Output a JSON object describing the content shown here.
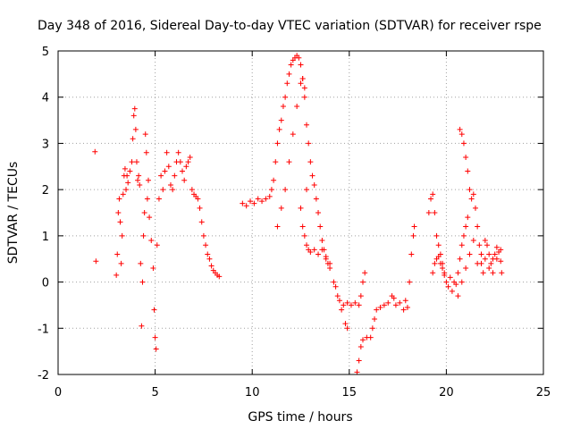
{
  "chart_data": {
    "type": "scatter",
    "title": "Day 348 of 2016, Sidereal Day-to-day VTEC variation (SDTVAR) for receiver rspe",
    "xlabel": "GPS time / hours",
    "ylabel": "SDTVAR / TECUs",
    "xlim": [
      0,
      25
    ],
    "ylim": [
      -2,
      5
    ],
    "xticks": [
      "0",
      "5",
      "10",
      "15",
      "20",
      "25"
    ],
    "yticks": [
      "-2",
      "-1",
      "0",
      "1",
      "2",
      "3",
      "4",
      "5"
    ],
    "grid": true,
    "marker": "plus",
    "series_color": "#ff0000",
    "series": [
      {
        "name": "SDTVAR",
        "points": [
          [
            1.9,
            2.82
          ],
          [
            1.95,
            0.45
          ],
          [
            3.0,
            0.15
          ],
          [
            3.05,
            0.6
          ],
          [
            3.1,
            1.5
          ],
          [
            3.15,
            1.8
          ],
          [
            3.2,
            1.3
          ],
          [
            3.25,
            0.4
          ],
          [
            3.3,
            1.0
          ],
          [
            3.35,
            1.9
          ],
          [
            3.4,
            2.3
          ],
          [
            3.45,
            2.45
          ],
          [
            3.5,
            2.0
          ],
          [
            3.55,
            2.3
          ],
          [
            3.6,
            2.15
          ],
          [
            3.7,
            2.4
          ],
          [
            3.8,
            2.6
          ],
          [
            3.85,
            3.1
          ],
          [
            3.9,
            3.6
          ],
          [
            3.95,
            3.75
          ],
          [
            4.0,
            3.3
          ],
          [
            4.05,
            2.6
          ],
          [
            4.1,
            2.2
          ],
          [
            4.15,
            2.3
          ],
          [
            4.2,
            2.1
          ],
          [
            4.25,
            0.4
          ],
          [
            4.3,
            -0.95
          ],
          [
            4.35,
            0.0
          ],
          [
            4.4,
            1.0
          ],
          [
            4.45,
            1.5
          ],
          [
            4.5,
            3.2
          ],
          [
            4.55,
            2.8
          ],
          [
            4.6,
            1.8
          ],
          [
            4.65,
            2.2
          ],
          [
            4.7,
            1.4
          ],
          [
            4.8,
            0.9
          ],
          [
            4.9,
            0.3
          ],
          [
            4.95,
            -0.6
          ],
          [
            5.0,
            -1.2
          ],
          [
            5.05,
            -1.45
          ],
          [
            5.1,
            0.8
          ],
          [
            5.2,
            1.8
          ],
          [
            5.3,
            2.3
          ],
          [
            5.4,
            2.0
          ],
          [
            5.5,
            2.4
          ],
          [
            5.6,
            2.8
          ],
          [
            5.7,
            2.5
          ],
          [
            5.8,
            2.1
          ],
          [
            5.9,
            2.0
          ],
          [
            6.0,
            2.3
          ],
          [
            6.1,
            2.6
          ],
          [
            6.2,
            2.8
          ],
          [
            6.3,
            2.6
          ],
          [
            6.4,
            2.4
          ],
          [
            6.5,
            2.2
          ],
          [
            6.6,
            2.5
          ],
          [
            6.7,
            2.6
          ],
          [
            6.8,
            2.7
          ],
          [
            6.9,
            2.0
          ],
          [
            7.0,
            1.9
          ],
          [
            7.1,
            1.85
          ],
          [
            7.2,
            1.8
          ],
          [
            7.3,
            1.6
          ],
          [
            7.4,
            1.3
          ],
          [
            7.5,
            1.0
          ],
          [
            7.6,
            0.8
          ],
          [
            7.7,
            0.6
          ],
          [
            7.8,
            0.5
          ],
          [
            7.9,
            0.35
          ],
          [
            8.0,
            0.25
          ],
          [
            8.1,
            0.2
          ],
          [
            8.2,
            0.15
          ],
          [
            8.3,
            0.12
          ],
          [
            9.5,
            1.7
          ],
          [
            9.7,
            1.65
          ],
          [
            9.9,
            1.75
          ],
          [
            10.1,
            1.7
          ],
          [
            10.3,
            1.8
          ],
          [
            10.5,
            1.75
          ],
          [
            10.7,
            1.8
          ],
          [
            10.9,
            1.85
          ],
          [
            11.0,
            2.0
          ],
          [
            11.1,
            2.2
          ],
          [
            11.2,
            2.6
          ],
          [
            11.3,
            3.0
          ],
          [
            11.4,
            3.3
          ],
          [
            11.5,
            3.5
          ],
          [
            11.6,
            3.8
          ],
          [
            11.7,
            4.0
          ],
          [
            11.8,
            4.3
          ],
          [
            11.9,
            4.5
          ],
          [
            12.0,
            4.7
          ],
          [
            12.1,
            4.8
          ],
          [
            12.2,
            4.85
          ],
          [
            12.3,
            4.9
          ],
          [
            12.4,
            4.85
          ],
          [
            12.5,
            4.7
          ],
          [
            12.6,
            4.4
          ],
          [
            12.7,
            4.0
          ],
          [
            12.8,
            3.4
          ],
          [
            12.9,
            3.0
          ],
          [
            13.0,
            2.6
          ],
          [
            13.1,
            2.3
          ],
          [
            13.2,
            2.1
          ],
          [
            13.3,
            1.8
          ],
          [
            13.4,
            1.5
          ],
          [
            13.5,
            1.2
          ],
          [
            13.6,
            0.9
          ],
          [
            13.7,
            0.7
          ],
          [
            13.8,
            0.5
          ],
          [
            13.9,
            0.4
          ],
          [
            14.0,
            0.3
          ],
          [
            14.2,
            0.0
          ],
          [
            14.4,
            -0.3
          ],
          [
            14.6,
            -0.6
          ],
          [
            14.8,
            -0.9
          ],
          [
            14.9,
            -1.0
          ],
          [
            11.3,
            1.2
          ],
          [
            11.5,
            1.6
          ],
          [
            11.7,
            2.0
          ],
          [
            11.9,
            2.6
          ],
          [
            12.1,
            3.2
          ],
          [
            12.3,
            3.8
          ],
          [
            12.5,
            4.3
          ],
          [
            12.6,
            4.4
          ],
          [
            12.7,
            4.2
          ],
          [
            12.8,
            2.0
          ],
          [
            12.5,
            1.6
          ],
          [
            12.6,
            1.2
          ],
          [
            12.7,
            1.0
          ],
          [
            12.8,
            0.8
          ],
          [
            12.9,
            0.7
          ],
          [
            13.0,
            0.65
          ],
          [
            13.2,
            0.7
          ],
          [
            13.4,
            0.6
          ],
          [
            13.6,
            0.7
          ],
          [
            13.8,
            0.55
          ],
          [
            14.0,
            0.4
          ],
          [
            14.3,
            -0.1
          ],
          [
            14.5,
            -0.4
          ],
          [
            14.7,
            -0.5
          ],
          [
            14.9,
            -0.45
          ],
          [
            15.1,
            -0.5
          ],
          [
            15.3,
            -0.45
          ],
          [
            15.5,
            -0.5
          ],
          [
            15.6,
            -0.3
          ],
          [
            15.7,
            0.0
          ],
          [
            15.8,
            0.2
          ],
          [
            15.4,
            -1.95
          ],
          [
            15.5,
            -1.7
          ],
          [
            15.6,
            -1.4
          ],
          [
            15.7,
            -1.25
          ],
          [
            15.9,
            -1.2
          ],
          [
            16.1,
            -1.2
          ],
          [
            16.2,
            -1.0
          ],
          [
            16.3,
            -0.8
          ],
          [
            16.4,
            -0.6
          ],
          [
            16.6,
            -0.55
          ],
          [
            16.8,
            -0.5
          ],
          [
            17.0,
            -0.45
          ],
          [
            17.2,
            -0.3
          ],
          [
            17.3,
            -0.35
          ],
          [
            17.4,
            -0.5
          ],
          [
            17.6,
            -0.45
          ],
          [
            17.8,
            -0.6
          ],
          [
            17.9,
            -0.4
          ],
          [
            18.0,
            -0.55
          ],
          [
            18.1,
            0.0
          ],
          [
            18.2,
            0.6
          ],
          [
            18.3,
            1.0
          ],
          [
            18.35,
            1.2
          ],
          [
            19.1,
            1.5
          ],
          [
            19.2,
            1.8
          ],
          [
            19.3,
            1.9
          ],
          [
            19.4,
            1.5
          ],
          [
            19.5,
            1.0
          ],
          [
            19.6,
            0.8
          ],
          [
            19.7,
            0.6
          ],
          [
            19.8,
            0.4
          ],
          [
            19.9,
            0.2
          ],
          [
            20.0,
            0.0
          ],
          [
            20.2,
            0.1
          ],
          [
            20.4,
            0.0
          ],
          [
            19.3,
            0.2
          ],
          [
            19.4,
            0.4
          ],
          [
            19.5,
            0.5
          ],
          [
            19.6,
            0.55
          ],
          [
            19.7,
            0.4
          ],
          [
            19.8,
            0.3
          ],
          [
            19.9,
            0.15
          ],
          [
            20.1,
            -0.1
          ],
          [
            20.3,
            -0.2
          ],
          [
            20.5,
            -0.05
          ],
          [
            20.6,
            0.2
          ],
          [
            20.7,
            0.5
          ],
          [
            20.8,
            0.8
          ],
          [
            20.9,
            1.0
          ],
          [
            21.0,
            1.2
          ],
          [
            21.1,
            1.4
          ],
          [
            20.7,
            3.3
          ],
          [
            20.8,
            3.2
          ],
          [
            20.9,
            3.0
          ],
          [
            21.0,
            2.7
          ],
          [
            21.1,
            2.4
          ],
          [
            21.2,
            2.0
          ],
          [
            21.3,
            1.8
          ],
          [
            21.4,
            1.9
          ],
          [
            21.5,
            1.6
          ],
          [
            21.6,
            1.2
          ],
          [
            21.7,
            0.8
          ],
          [
            21.8,
            0.4
          ],
          [
            21.9,
            0.2
          ],
          [
            22.0,
            0.5
          ],
          [
            22.1,
            0.8
          ],
          [
            22.2,
            0.6
          ],
          [
            22.3,
            0.4
          ],
          [
            22.4,
            0.5
          ],
          [
            22.5,
            0.6
          ],
          [
            22.6,
            0.75
          ],
          [
            22.7,
            0.65
          ],
          [
            22.8,
            0.45
          ],
          [
            22.85,
            0.2
          ],
          [
            20.6,
            -0.3
          ],
          [
            20.8,
            0.0
          ],
          [
            21.0,
            0.3
          ],
          [
            21.2,
            0.6
          ],
          [
            21.4,
            0.9
          ],
          [
            21.6,
            0.4
          ],
          [
            21.8,
            0.6
          ],
          [
            22.0,
            0.9
          ],
          [
            22.2,
            0.3
          ],
          [
            22.4,
            0.2
          ],
          [
            22.6,
            0.5
          ],
          [
            22.8,
            0.7
          ]
        ]
      }
    ]
  }
}
